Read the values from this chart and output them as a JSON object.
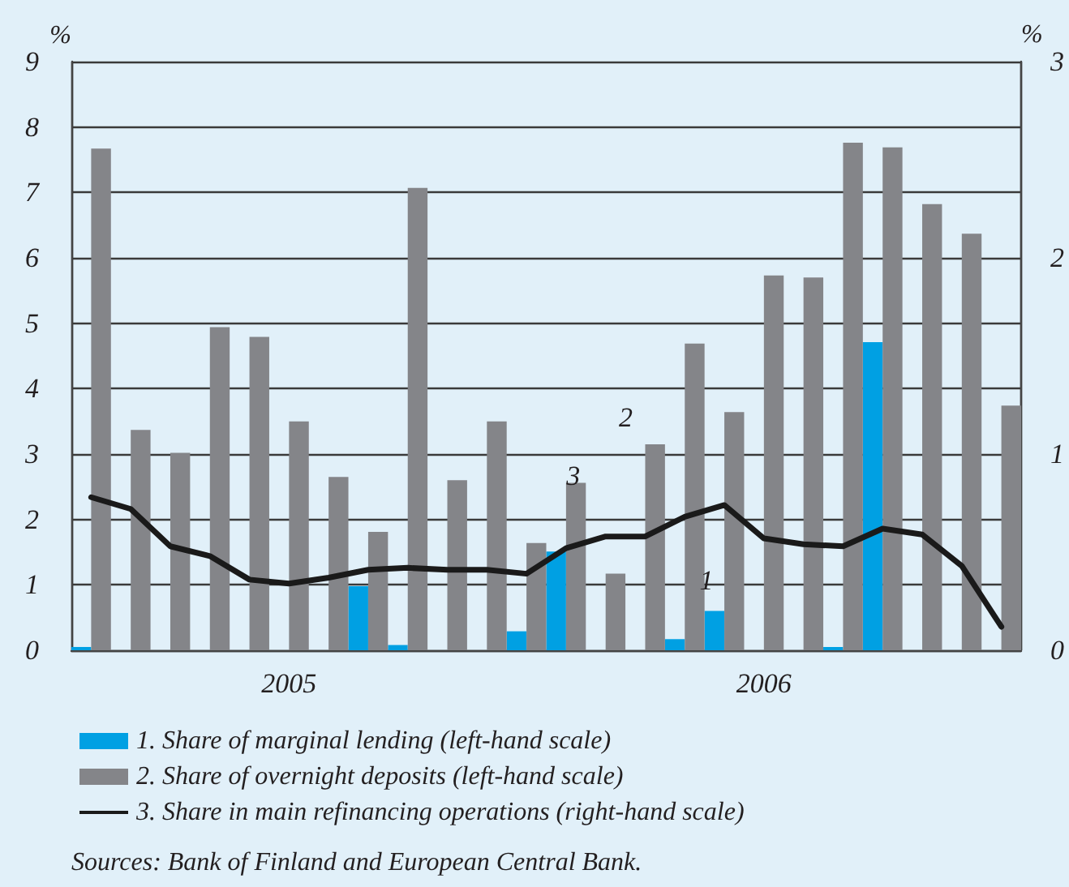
{
  "chart_data": {
    "type": "bar",
    "categories": [
      null,
      null,
      null,
      null,
      null,
      "2005",
      null,
      null,
      null,
      null,
      null,
      null,
      null,
      null,
      null,
      null,
      null,
      "2006",
      null,
      null,
      null,
      null,
      null,
      null
    ],
    "series": [
      {
        "name": "1. Share of marginal lending (left-hand scale)",
        "color": "#00a0e3",
        "values": [
          0.05,
          null,
          null,
          null,
          null,
          null,
          null,
          0.98,
          0.08,
          null,
          null,
          0.29,
          1.51,
          null,
          null,
          0.17,
          0.6,
          null,
          null,
          0.05,
          4.71,
          null,
          null,
          null
        ]
      },
      {
        "name": "2. Share of overnight deposits (left-hand scale)",
        "color": "#848589",
        "values": [
          7.67,
          3.37,
          3.02,
          4.94,
          4.79,
          3.5,
          2.65,
          1.81,
          7.07,
          2.6,
          3.5,
          1.64,
          2.56,
          1.17,
          3.15,
          4.69,
          3.64,
          5.73,
          5.7,
          7.76,
          7.69,
          6.82,
          6.37,
          3.74
        ]
      },
      {
        "name": "3. Share in main refinancing operations (right-hand scale)",
        "type": "line",
        "axis": "y2",
        "color": "#1a1a1a",
        "values": [
          0.78,
          0.72,
          0.53,
          0.48,
          0.36,
          0.34,
          0.37,
          0.41,
          0.42,
          0.41,
          0.41,
          0.39,
          0.52,
          0.58,
          0.58,
          0.68,
          0.74,
          0.57,
          0.54,
          0.53,
          0.62,
          0.59,
          0.43,
          0.12
        ]
      }
    ],
    "ylabel": "%",
    "y2label": "%",
    "ylim": [
      0,
      9
    ],
    "yticks": [
      0,
      1,
      2,
      3,
      4,
      5,
      6,
      7,
      8,
      9
    ],
    "y2lim": [
      0,
      3
    ],
    "y2ticks": [
      0,
      1,
      2,
      3
    ],
    "grid": "y",
    "legend": "bottom",
    "marker": "none",
    "line_style": "solid",
    "annotations": [
      "1",
      "2",
      "3",
      "Sources: Bank of Finland and European Central Bank."
    ]
  }
}
